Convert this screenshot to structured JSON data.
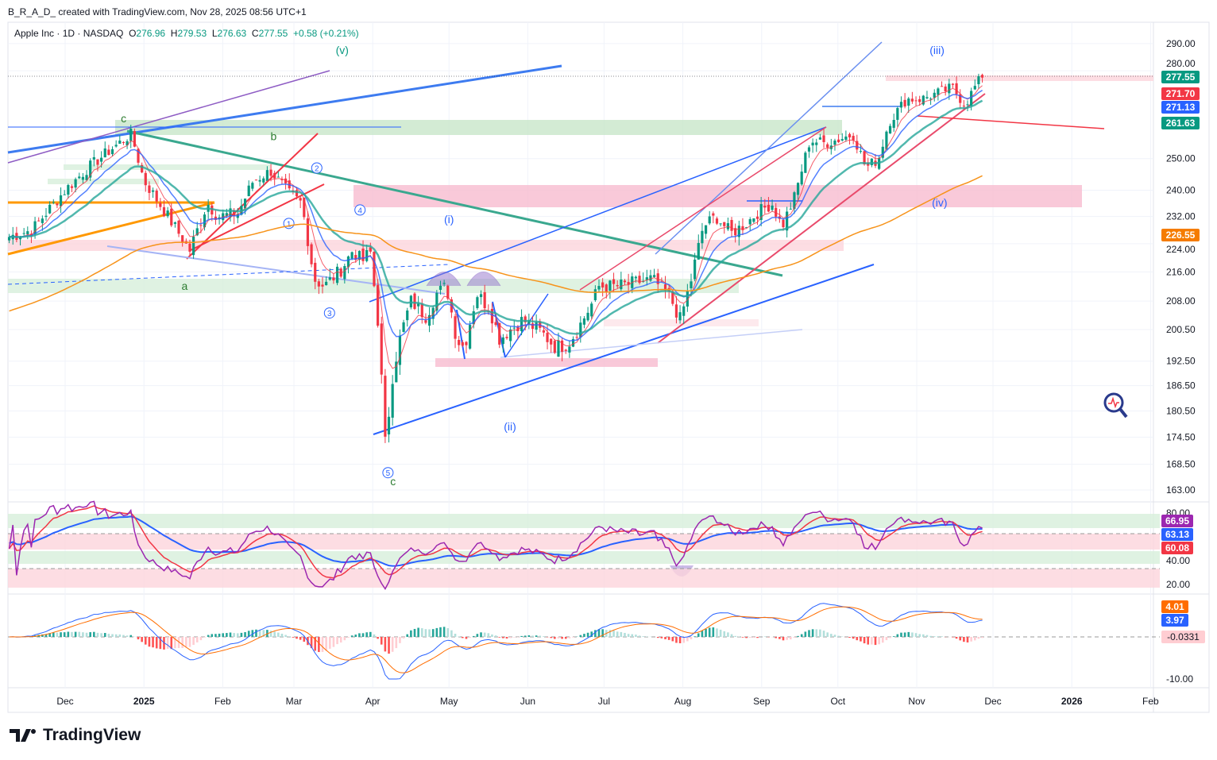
{
  "header": {
    "attribution": "B_R_A_D_ created with TradingView.com, Nov 28, 2025 08:56 UTC+1"
  },
  "legend": {
    "symbol": "Apple Inc · 1D · NASDAQ",
    "o_label": "O",
    "open": "276.96",
    "h_label": "H",
    "high": "279.53",
    "l_label": "L",
    "low": "276.63",
    "c_label": "C",
    "close": "277.55",
    "change": "+0.58 (+0.21%)"
  },
  "footer": {
    "logo": "TradingView"
  },
  "colors": {
    "up": "#089981",
    "down": "#f23645",
    "ema_fast": "#f23645",
    "ema_mid": "#2962ff",
    "ema_slow": "#26a69a",
    "ma_long": "#f7931a",
    "rsi": "#9c27b0"
  },
  "chart_data": {
    "type": "candlestick",
    "title": "Apple Inc · 1D · NASDAQ",
    "scale": "log",
    "ylim": [
      160,
      295
    ],
    "price_ticks": [
      "290.00",
      "280.00",
      "250.00",
      "240.00",
      "232.00",
      "224.00",
      "216.00",
      "208.00",
      "200.50",
      "192.50",
      "186.50",
      "180.50",
      "174.50",
      "168.50",
      "163.00"
    ],
    "price_tick_values": [
      290,
      280,
      250,
      240,
      232,
      224,
      216,
      208,
      200.5,
      192.5,
      186.5,
      180.5,
      174.5,
      168.5,
      163
    ],
    "time_ticks": [
      "Dec",
      "2025",
      "Feb",
      "Mar",
      "Apr",
      "May",
      "Jun",
      "Jul",
      "Aug",
      "Sep",
      "Oct",
      "Nov",
      "Dec",
      "2026",
      "Feb"
    ],
    "time_tick_dates": [
      "2024-12-01",
      "2025-01-01",
      "2025-02-01",
      "2025-03-01",
      "2025-04-01",
      "2025-05-01",
      "2025-06-01",
      "2025-07-01",
      "2025-08-01",
      "2025-09-01",
      "2025-10-01",
      "2025-11-01",
      "2025-12-01",
      "2026-01-01",
      "2026-02-01"
    ],
    "close_points": [
      [
        "2024-11-09",
        226
      ],
      [
        "2024-11-18",
        228
      ],
      [
        "2024-12-01",
        240
      ],
      [
        "2024-12-10",
        247
      ],
      [
        "2024-12-19",
        253
      ],
      [
        "2024-12-27",
        258
      ],
      [
        "2025-01-01",
        243
      ],
      [
        "2025-01-07",
        236
      ],
      [
        "2025-01-13",
        229
      ],
      [
        "2025-01-19",
        222
      ],
      [
        "2025-01-26",
        236
      ],
      [
        "2025-01-30",
        232
      ],
      [
        "2025-02-07",
        233
      ],
      [
        "2025-02-13",
        243
      ],
      [
        "2025-02-20",
        246
      ],
      [
        "2025-02-27",
        239
      ],
      [
        "2025-03-04",
        236
      ],
      [
        "2025-03-09",
        214
      ],
      [
        "2025-03-13",
        212
      ],
      [
        "2025-03-20",
        217
      ],
      [
        "2025-03-24",
        222
      ],
      [
        "2025-03-28",
        219
      ],
      [
        "2025-03-31",
        222
      ],
      [
        "2025-04-03",
        203
      ],
      [
        "2025-04-06",
        172
      ],
      [
        "2025-04-09",
        190
      ],
      [
        "2025-04-12",
        199
      ],
      [
        "2025-04-16",
        208
      ],
      [
        "2025-04-22",
        204
      ],
      [
        "2025-04-26",
        210
      ],
      [
        "2025-04-30",
        212
      ],
      [
        "2025-05-04",
        198
      ],
      [
        "2025-05-07",
        196
      ],
      [
        "2025-05-12",
        210
      ],
      [
        "2025-05-17",
        206
      ],
      [
        "2025-05-21",
        198
      ],
      [
        "2025-05-24",
        200
      ],
      [
        "2025-05-30",
        203
      ],
      [
        "2025-06-06",
        200
      ],
      [
        "2025-06-12",
        196
      ],
      [
        "2025-06-17",
        197
      ],
      [
        "2025-06-21",
        201
      ],
      [
        "2025-06-26",
        207
      ],
      [
        "2025-06-29",
        212
      ],
      [
        "2025-07-06",
        212
      ],
      [
        "2025-07-13",
        213
      ],
      [
        "2025-07-20",
        214
      ],
      [
        "2025-07-27",
        209
      ],
      [
        "2025-07-31",
        203
      ],
      [
        "2025-08-04",
        213
      ],
      [
        "2025-08-09",
        229
      ],
      [
        "2025-08-14",
        232
      ],
      [
        "2025-08-20",
        227
      ],
      [
        "2025-08-26",
        230
      ],
      [
        "2025-08-30",
        233
      ],
      [
        "2025-09-05",
        236
      ],
      [
        "2025-09-09",
        229
      ],
      [
        "2025-09-14",
        238
      ],
      [
        "2025-09-20",
        256
      ],
      [
        "2025-09-26",
        255
      ],
      [
        "2025-09-30",
        256
      ],
      [
        "2025-10-07",
        258
      ],
      [
        "2025-10-12",
        247
      ],
      [
        "2025-10-17",
        250
      ],
      [
        "2025-10-21",
        262
      ],
      [
        "2025-10-28",
        270
      ],
      [
        "2025-11-03",
        270
      ],
      [
        "2025-11-09",
        272
      ],
      [
        "2025-11-15",
        274
      ],
      [
        "2025-11-20",
        268
      ],
      [
        "2025-11-25",
        276
      ],
      [
        "2025-11-28",
        277.55
      ]
    ],
    "price_labels": [
      {
        "value": "277.55",
        "color": "#089981",
        "price": 277.55
      },
      {
        "value": "271.70",
        "color": "#f23645",
        "price": 271.7
      },
      {
        "value": "271.13",
        "color": "#2962ff",
        "price": 271.13
      },
      {
        "value": "261.63",
        "color": "#089981",
        "price": 261.63
      },
      {
        "value": "226.55",
        "color": "#f57c00",
        "price": 226.55
      }
    ],
    "wave_labels": [
      {
        "text": "(v)",
        "date": "2025-03-20",
        "price": 293,
        "color": "#089981"
      },
      {
        "text": "c",
        "date": "2024-12-24",
        "price": 262,
        "color": "#2e7d32"
      },
      {
        "text": "b",
        "date": "2025-02-21",
        "price": 256,
        "color": "#2e7d32"
      },
      {
        "text": "a",
        "date": "2025-01-17",
        "price": 211,
        "color": "#2e7d32"
      },
      {
        "text": "c",
        "date": "2025-04-09",
        "price": 164,
        "color": "#2e7d32"
      },
      {
        "text": "(i)",
        "date": "2025-05-01",
        "price": 230,
        "color": "#2962ff"
      },
      {
        "text": "(ii)",
        "date": "2025-05-25",
        "price": 176,
        "color": "#2962ff"
      },
      {
        "text": "(iii)",
        "date": "2025-11-09",
        "price": 291,
        "color": "#2962ff"
      },
      {
        "text": "(iv)",
        "date": "2025-11-10",
        "price": 235,
        "color": "#2962ff"
      },
      {
        "text": "1",
        "date": "2025-02-27",
        "price": 229,
        "color": "#2962ff"
      },
      {
        "text": "2",
        "date": "2025-03-10",
        "price": 246,
        "color": "#2962ff"
      },
      {
        "text": "3",
        "date": "2025-03-15",
        "price": 204,
        "color": "#2962ff"
      },
      {
        "text": "4",
        "date": "2025-03-27",
        "price": 233,
        "color": "#2962ff"
      },
      {
        "text": "5",
        "date": "2025-04-07",
        "price": 166,
        "color": "#2962ff"
      }
    ],
    "rsi": {
      "ticks": [
        "80.00",
        "40.00",
        "20.00"
      ],
      "tick_values": [
        80,
        40,
        20
      ],
      "labels": [
        {
          "value": "66.95",
          "color": "#9c27b0"
        },
        {
          "value": "63.13",
          "color": "#2962ff"
        },
        {
          "value": "60.08",
          "color": "#f23645"
        }
      ]
    },
    "macd": {
      "ticks": [
        "-10.00"
      ],
      "tick_values": [
        -10
      ],
      "labels": [
        {
          "value": "4.01",
          "color": "#ff6d00"
        },
        {
          "value": "3.97",
          "color": "#2962ff"
        },
        {
          "value": "-0.0331",
          "color": "#ffcdd2"
        }
      ]
    }
  }
}
